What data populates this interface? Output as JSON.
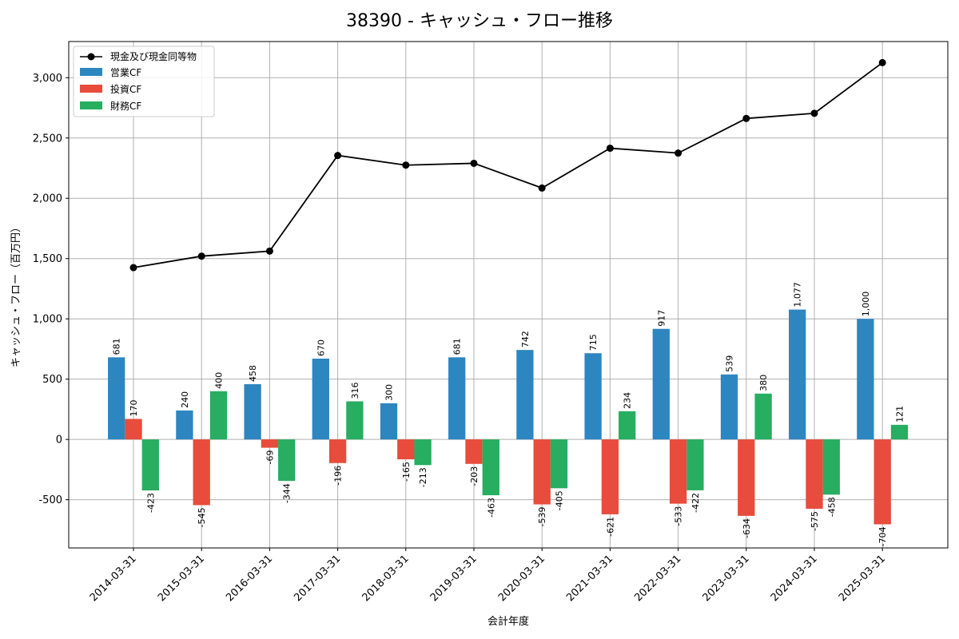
{
  "chart_data": {
    "type": "bar",
    "title": "38390 - キャッシュ・フロー推移",
    "xlabel": "会計年度",
    "ylabel": "キャッシュ・フロー（百万円）",
    "ylim": [
      -900,
      3300
    ],
    "yticks": [
      -500,
      0,
      500,
      1000,
      1500,
      2000,
      2500,
      3000
    ],
    "ytick_labels": [
      "-500",
      "0",
      "500",
      "1,000",
      "1,500",
      "2,000",
      "2,500",
      "3,000"
    ],
    "grid": true,
    "legend_position": "top-left",
    "categories": [
      "2014-03-31",
      "2015-03-31",
      "2016-03-31",
      "2017-03-31",
      "2018-03-31",
      "2019-03-31",
      "2020-03-31",
      "2021-03-31",
      "2022-03-31",
      "2023-03-31",
      "2024-03-31",
      "2025-03-31"
    ],
    "line_series": {
      "name": "現金及び現金同等物",
      "type": "line",
      "color": "#000000",
      "values": [
        1425,
        1520,
        1562,
        2355,
        2275,
        2290,
        2085,
        2415,
        2375,
        2662,
        2705,
        3125
      ]
    },
    "series": [
      {
        "name": "営業CF",
        "color": "#2e86c1",
        "values": [
          681,
          240,
          458,
          670,
          300,
          681,
          742,
          715,
          917,
          539,
          1077,
          1000
        ],
        "labels": [
          "681",
          "240",
          "458",
          "670",
          "300",
          "681",
          "742",
          "715",
          "917",
          "539",
          "1,077",
          "1,000"
        ]
      },
      {
        "name": "投資CF",
        "color": "#e74c3c",
        "values": [
          170,
          -545,
          -69,
          -196,
          -165,
          -203,
          -539,
          -621,
          -533,
          -634,
          -575,
          -704
        ],
        "labels": [
          "170",
          "-545",
          "-69",
          "-196",
          "-165",
          "-203",
          "-539",
          "-621",
          "-533",
          "-634",
          "-575",
          "-704"
        ]
      },
      {
        "name": "財務CF",
        "color": "#27ae60",
        "values": [
          -423,
          400,
          -344,
          316,
          -213,
          -463,
          -405,
          234,
          -422,
          380,
          -458,
          121
        ],
        "labels": [
          "-423",
          "400",
          "-344",
          "316",
          "-213",
          "-463",
          "-405",
          "234",
          "-422",
          "380",
          "-458",
          "121"
        ]
      }
    ]
  }
}
